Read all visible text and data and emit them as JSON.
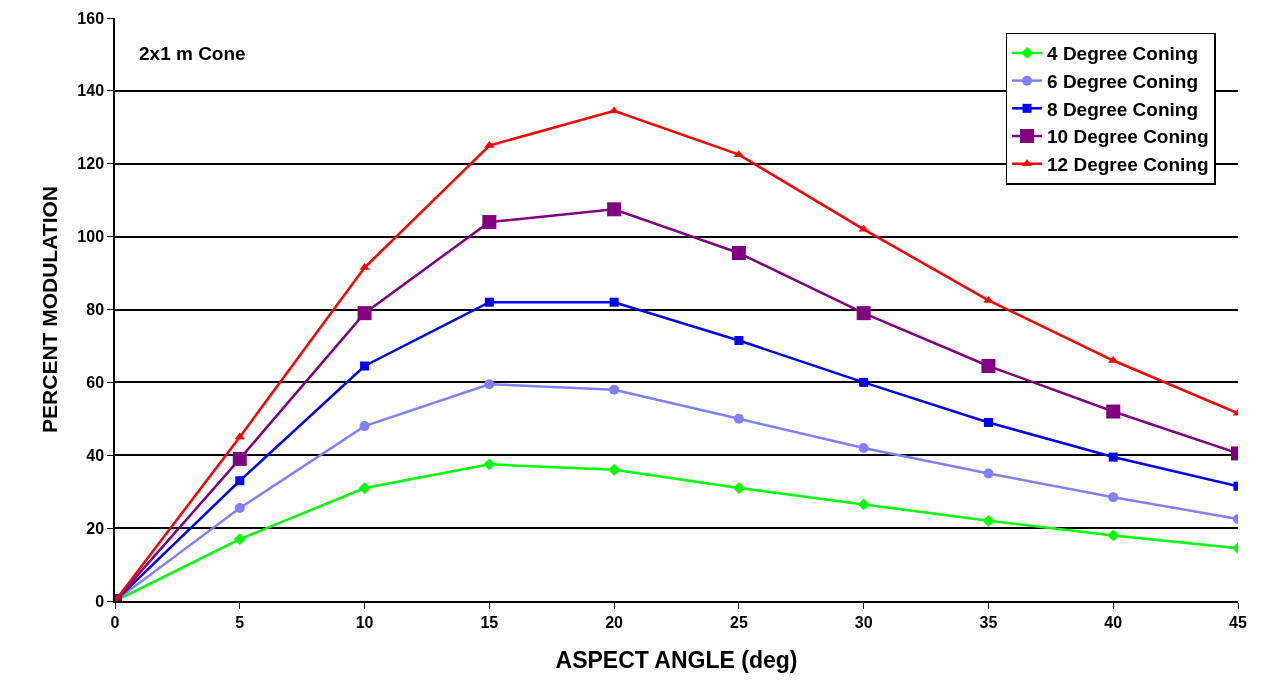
{
  "chart_data": {
    "type": "line",
    "xlabel": "ASPECT ANGLE (deg)",
    "ylabel": "PERCENT MODULATION",
    "annotations": [
      "2x1 m Cone"
    ],
    "x": [
      0,
      5,
      10,
      15,
      20,
      25,
      30,
      35,
      40,
      45
    ],
    "series": [
      {
        "name": "4 Degree Coning",
        "color": "#00ff00",
        "marker": "diamond",
        "values": [
          0,
          17,
          31,
          37.5,
          36,
          31,
          26.5,
          22,
          18,
          14.5
        ]
      },
      {
        "name": "6 Degree Coning",
        "color": "#8080ff",
        "marker": "circle",
        "values": [
          0,
          25.5,
          48,
          59.5,
          58,
          50,
          42,
          35,
          28.5,
          22.5
        ]
      },
      {
        "name": "8 Degree Coning",
        "color": "#0000ff",
        "marker": "square",
        "values": [
          0,
          33,
          64.5,
          82,
          82,
          71.5,
          60,
          49,
          39.5,
          31.5
        ]
      },
      {
        "name": "10 Degree Coning",
        "color": "#800080",
        "marker": "square",
        "values": [
          0,
          39,
          79,
          104,
          107.5,
          95.5,
          79,
          64.5,
          52,
          40.5
        ]
      },
      {
        "name": "12 Degree Coning",
        "color": "#ff0000",
        "marker": "triangle",
        "values": [
          0,
          45,
          91.5,
          125,
          134.5,
          122.5,
          102,
          82.5,
          66,
          51.5
        ]
      }
    ],
    "xlim": [
      0,
      45
    ],
    "xticks": [
      0,
      5,
      10,
      15,
      20,
      25,
      30,
      35,
      40,
      45
    ],
    "ylim": [
      0,
      160
    ],
    "yticks": [
      0,
      20,
      40,
      60,
      80,
      100,
      120,
      140,
      160
    ],
    "grid": "y",
    "legend": "top right"
  }
}
